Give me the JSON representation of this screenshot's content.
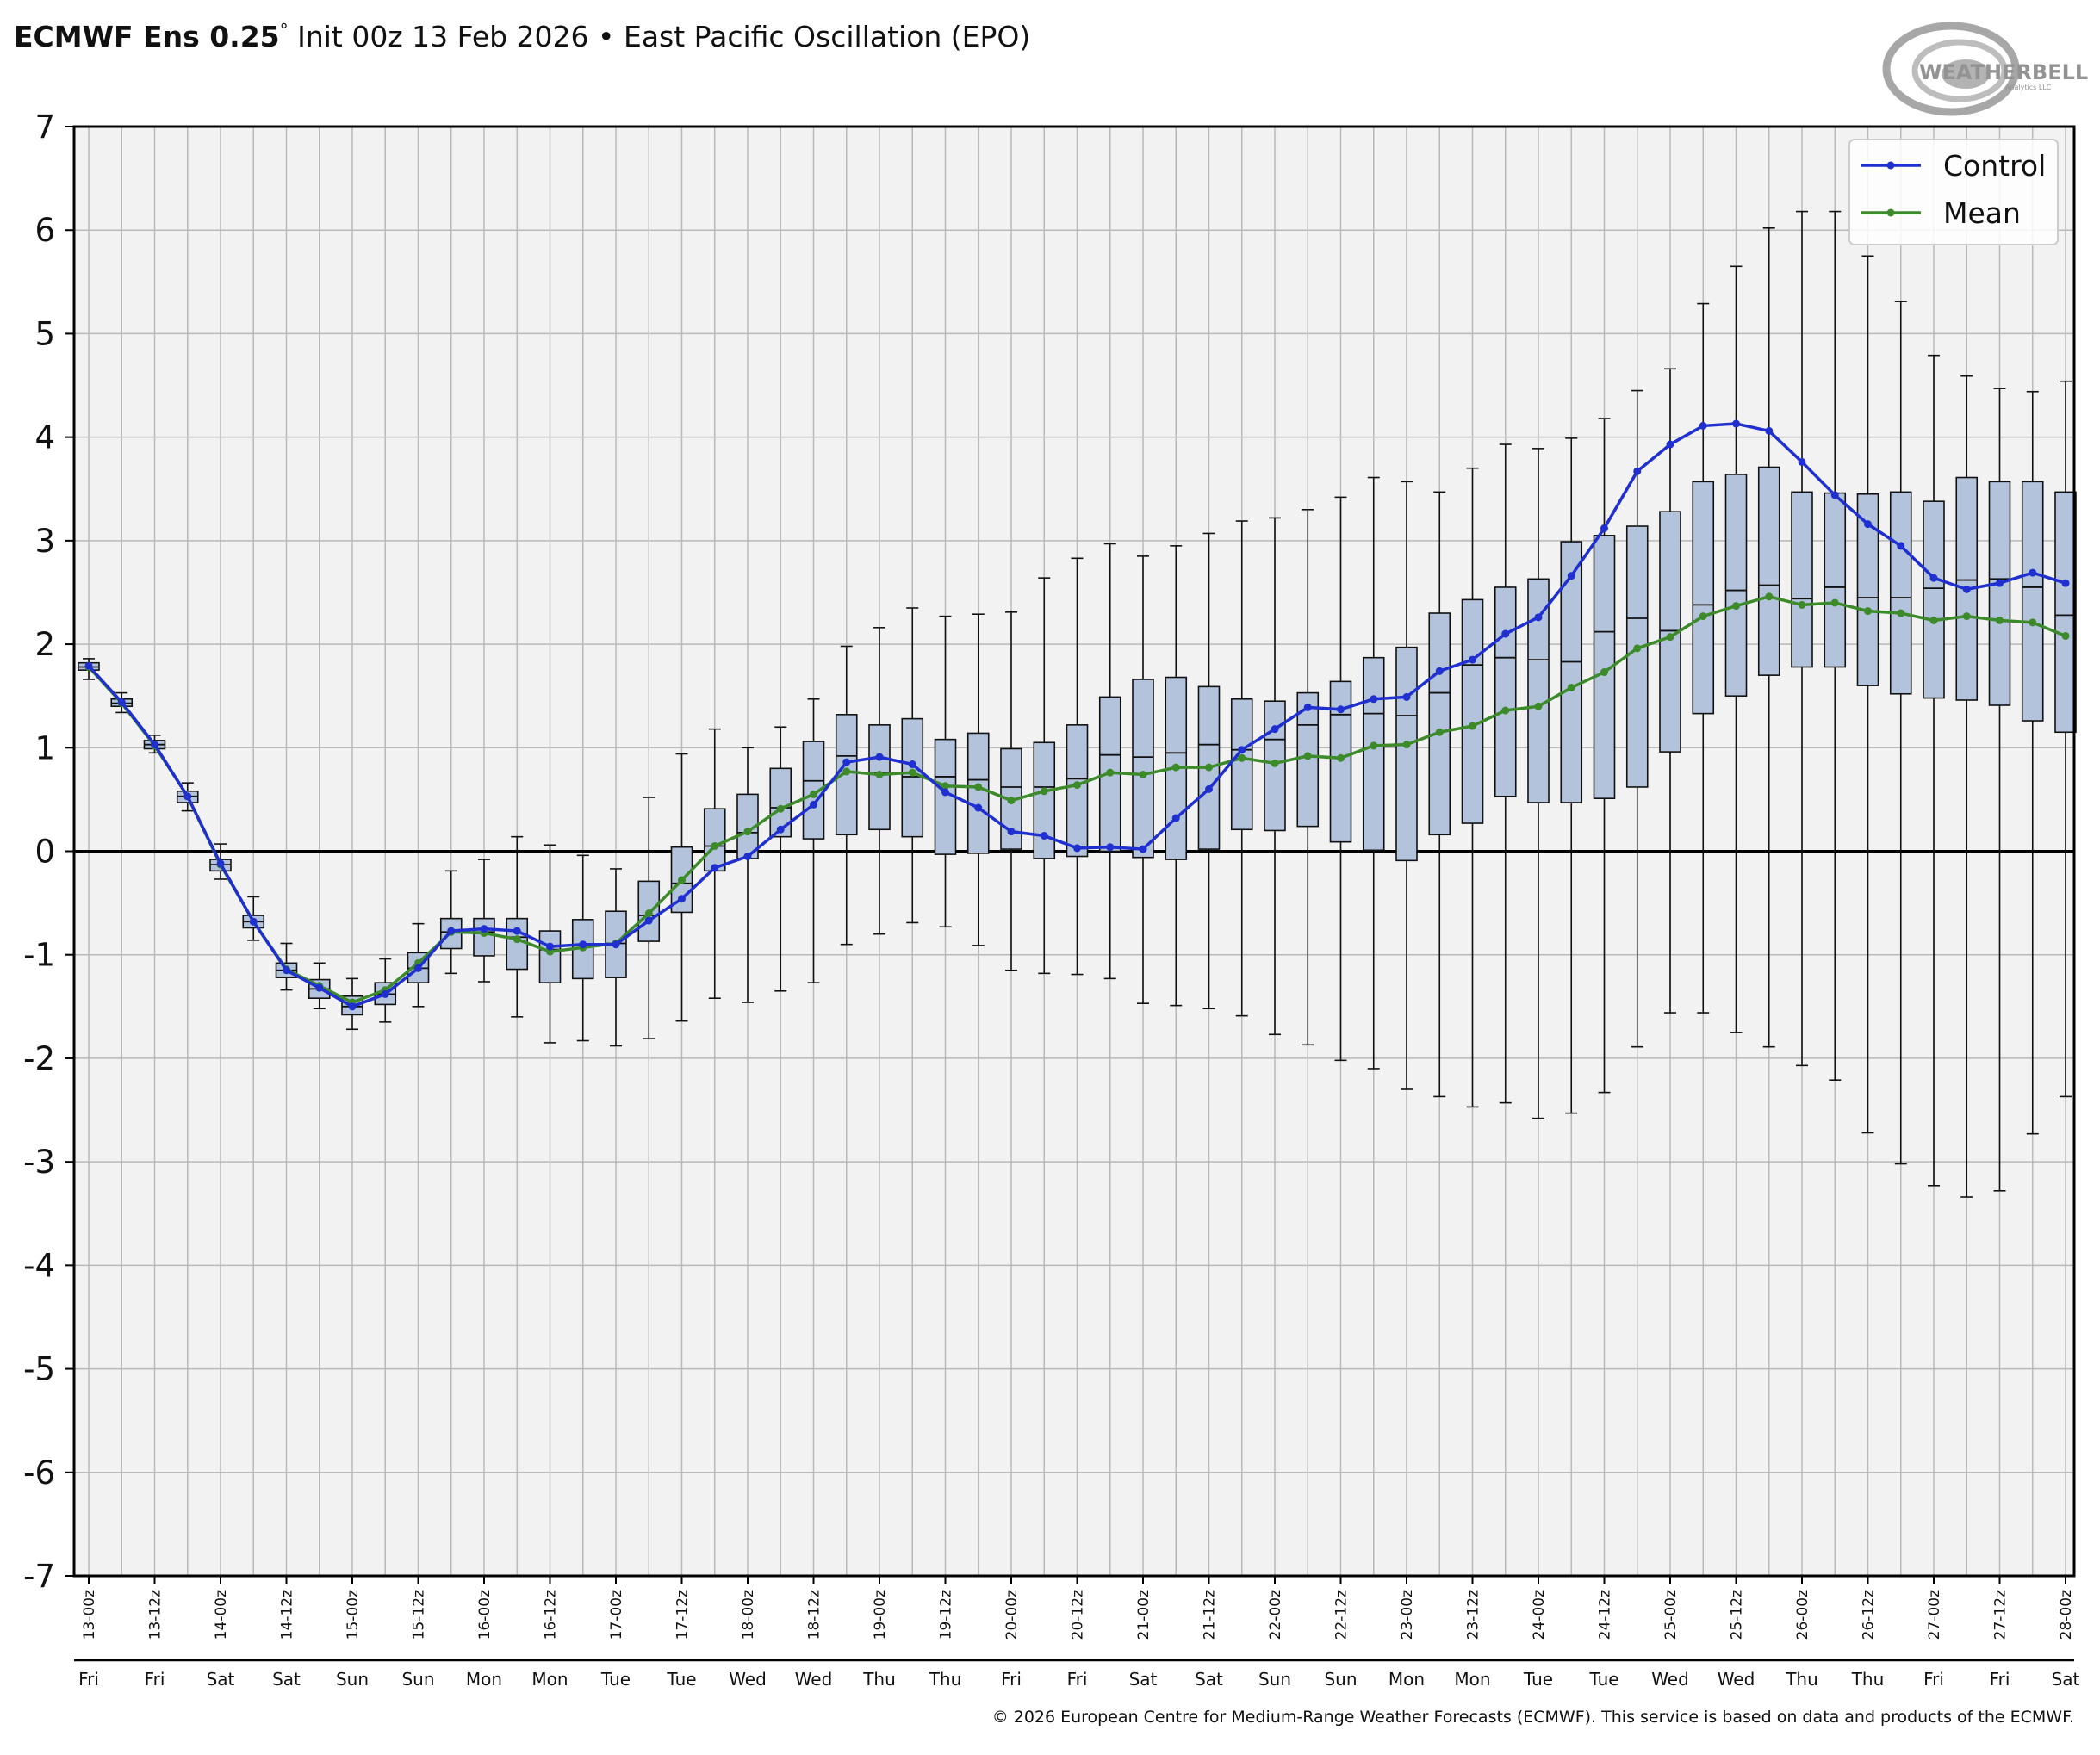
{
  "header": {
    "title_bold": "ECMWF Ens 0.25",
    "title_degree": "°",
    "title_rest": " Init 00z 13 Feb 2026 • East Pacific Oscillation (EPO)"
  },
  "logo": {
    "text_main": "WEATHERBELL",
    "text_sub": "Analytics LLC"
  },
  "footer": {
    "copyright": "© 2026 European Centre for Medium-Range Weather Forecasts (ECMWF). This service is based on data and products of the ECMWF."
  },
  "colors": {
    "control": "#1f2fd0",
    "mean": "#3d8a2a",
    "box_fill": "#b3c3dc",
    "plot_bg": "#f2f2f2",
    "grid": "#b9b9b9"
  },
  "chart_data": {
    "type": "box",
    "title": "ECMWF Ens 0.25° Init 00z 13 Feb 2026 • East Pacific Oscillation (EPO)",
    "ylim": [
      -7,
      7
    ],
    "yticks": [
      "7",
      "6",
      "5",
      "4",
      "3",
      "2",
      "1",
      "0",
      "-1",
      "-2",
      "-3",
      "-4",
      "-5",
      "-6",
      "-7"
    ],
    "grid": true,
    "legend": {
      "position": "top-right",
      "entries": [
        "Control",
        "Mean"
      ]
    },
    "categories": [
      "13-00z",
      "13-12z",
      "14-00z",
      "14-12z",
      "15-00z",
      "15-12z",
      "16-00z",
      "16-12z",
      "17-00z",
      "17-12z",
      "18-00z",
      "18-12z",
      "19-00z",
      "19-12z",
      "20-00z",
      "20-12z",
      "21-00z",
      "21-12z",
      "22-00z",
      "22-12z",
      "23-00z",
      "23-12z",
      "24-00z",
      "24-12z",
      "25-00z",
      "25-12z",
      "26-00z",
      "26-12z",
      "27-00z",
      "27-12z",
      "28-00z"
    ],
    "days": [
      "Fri",
      "Fri",
      "Sat",
      "Sat",
      "Sun",
      "Sun",
      "Mon",
      "Mon",
      "Tue",
      "Tue",
      "Wed",
      "Wed",
      "Thu",
      "Thu",
      "Fri",
      "Fri",
      "Sat",
      "Sat",
      "Sun",
      "Sun",
      "Mon",
      "Mon",
      "Tue",
      "Tue",
      "Wed",
      "Wed",
      "Thu",
      "Thu",
      "Fri",
      "Fri",
      "Sat"
    ],
    "series": [
      {
        "name": "Control",
        "values": [
          1.79,
          1.44,
          1.03,
          0.53,
          -0.12,
          -0.68,
          -1.15,
          -1.32,
          -1.5,
          -1.38,
          -1.13,
          -0.77,
          -0.75,
          -0.77,
          -0.92,
          -0.9,
          -0.9,
          -0.67,
          -0.46,
          -0.16,
          -0.05,
          0.21,
          0.45,
          0.86,
          0.91,
          0.84,
          0.57,
          0.42,
          0.19,
          0.15,
          0.03,
          0.04,
          0.02,
          0.32,
          0.6,
          0.98,
          1.18,
          1.39,
          1.37,
          1.47,
          1.49,
          1.74,
          1.85,
          2.1,
          2.26,
          2.66,
          3.12,
          3.67,
          3.93,
          4.11,
          4.13,
          4.06,
          3.76,
          3.44,
          3.16,
          2.95,
          2.64,
          2.53,
          2.59,
          2.69,
          2.59
        ]
      },
      {
        "name": "Mean",
        "values": [
          1.78,
          1.43,
          1.02,
          0.53,
          -0.13,
          -0.68,
          -1.14,
          -1.3,
          -1.46,
          -1.34,
          -1.08,
          -0.78,
          -0.79,
          -0.85,
          -0.97,
          -0.93,
          -0.89,
          -0.6,
          -0.28,
          0.05,
          0.19,
          0.41,
          0.55,
          0.77,
          0.74,
          0.76,
          0.63,
          0.62,
          0.49,
          0.58,
          0.64,
          0.76,
          0.74,
          0.81,
          0.81,
          0.9,
          0.85,
          0.92,
          0.9,
          1.02,
          1.03,
          1.15,
          1.21,
          1.36,
          1.4,
          1.58,
          1.73,
          1.96,
          2.07,
          2.27,
          2.37,
          2.46,
          2.38,
          2.4,
          2.32,
          2.3,
          2.23,
          2.27,
          2.23,
          2.21,
          2.08
        ]
      }
    ],
    "boxes": [
      {
        "q1": 1.75,
        "med": 1.78,
        "q3": 1.82,
        "lo": 1.66,
        "hi": 1.86
      },
      {
        "q1": 1.4,
        "med": 1.43,
        "q3": 1.47,
        "lo": 1.34,
        "hi": 1.53
      },
      {
        "q1": 0.99,
        "med": 1.03,
        "q3": 1.07,
        "lo": 0.95,
        "hi": 1.12
      },
      {
        "q1": 0.47,
        "med": 0.53,
        "q3": 0.58,
        "lo": 0.39,
        "hi": 0.66
      },
      {
        "q1": -0.19,
        "med": -0.13,
        "q3": -0.08,
        "lo": -0.27,
        "hi": 0.07
      },
      {
        "q1": -0.74,
        "med": -0.68,
        "q3": -0.62,
        "lo": -0.86,
        "hi": -0.44
      },
      {
        "q1": -1.22,
        "med": -1.15,
        "q3": -1.08,
        "lo": -1.34,
        "hi": -0.89
      },
      {
        "q1": -1.42,
        "med": -1.33,
        "q3": -1.24,
        "lo": -1.52,
        "hi": -1.08
      },
      {
        "q1": -1.58,
        "med": -1.5,
        "q3": -1.4,
        "lo": -1.72,
        "hi": -1.23
      },
      {
        "q1": -1.48,
        "med": -1.38,
        "q3": -1.27,
        "lo": -1.65,
        "hi": -1.04
      },
      {
        "q1": -1.27,
        "med": -1.13,
        "q3": -0.98,
        "lo": -1.5,
        "hi": -0.7
      },
      {
        "q1": -0.94,
        "med": -0.78,
        "q3": -0.65,
        "lo": -1.18,
        "hi": -0.19
      },
      {
        "q1": -1.01,
        "med": -0.78,
        "q3": -0.65,
        "lo": -1.26,
        "hi": -0.08
      },
      {
        "q1": -1.14,
        "med": -0.83,
        "q3": -0.65,
        "lo": -1.6,
        "hi": 0.14
      },
      {
        "q1": -1.27,
        "med": -0.95,
        "q3": -0.77,
        "lo": -1.85,
        "hi": 0.06
      },
      {
        "q1": -1.23,
        "med": -0.91,
        "q3": -0.66,
        "lo": -1.83,
        "hi": -0.04
      },
      {
        "q1": -1.22,
        "med": -0.89,
        "q3": -0.58,
        "lo": -1.88,
        "hi": -0.17
      },
      {
        "q1": -0.87,
        "med": -0.62,
        "q3": -0.29,
        "lo": -1.81,
        "hi": 0.52
      },
      {
        "q1": -0.59,
        "med": -0.31,
        "q3": 0.04,
        "lo": -1.64,
        "hi": 0.94
      },
      {
        "q1": -0.19,
        "med": 0.05,
        "q3": 0.41,
        "lo": -1.42,
        "hi": 1.18
      },
      {
        "q1": -0.07,
        "med": 0.18,
        "q3": 0.55,
        "lo": -1.46,
        "hi": 1.0
      },
      {
        "q1": 0.14,
        "med": 0.42,
        "q3": 0.8,
        "lo": -1.35,
        "hi": 1.2
      },
      {
        "q1": 0.12,
        "med": 0.68,
        "q3": 1.06,
        "lo": -1.27,
        "hi": 1.47
      },
      {
        "q1": 0.16,
        "med": 0.92,
        "q3": 1.32,
        "lo": -0.9,
        "hi": 1.98
      },
      {
        "q1": 0.21,
        "med": 0.76,
        "q3": 1.22,
        "lo": -0.8,
        "hi": 2.16
      },
      {
        "q1": 0.14,
        "med": 0.72,
        "q3": 1.28,
        "lo": -0.69,
        "hi": 2.35
      },
      {
        "q1": -0.03,
        "med": 0.72,
        "q3": 1.08,
        "lo": -0.73,
        "hi": 2.27
      },
      {
        "q1": -0.02,
        "med": 0.69,
        "q3": 1.14,
        "lo": -0.91,
        "hi": 2.29
      },
      {
        "q1": 0.02,
        "med": 0.62,
        "q3": 0.99,
        "lo": -1.15,
        "hi": 2.31
      },
      {
        "q1": -0.07,
        "med": 0.62,
        "q3": 1.05,
        "lo": -1.18,
        "hi": 2.64
      },
      {
        "q1": -0.05,
        "med": 0.7,
        "q3": 1.22,
        "lo": -1.19,
        "hi": 2.83
      },
      {
        "q1": 0.0,
        "med": 0.93,
        "q3": 1.49,
        "lo": -1.23,
        "hi": 2.97
      },
      {
        "q1": -0.06,
        "med": 0.91,
        "q3": 1.66,
        "lo": -1.47,
        "hi": 2.85
      },
      {
        "q1": -0.08,
        "med": 0.95,
        "q3": 1.68,
        "lo": -1.49,
        "hi": 2.95
      },
      {
        "q1": 0.02,
        "med": 1.03,
        "q3": 1.59,
        "lo": -1.52,
        "hi": 3.07
      },
      {
        "q1": 0.21,
        "med": 0.98,
        "q3": 1.47,
        "lo": -1.59,
        "hi": 3.19
      },
      {
        "q1": 0.2,
        "med": 1.08,
        "q3": 1.45,
        "lo": -1.77,
        "hi": 3.22
      },
      {
        "q1": 0.24,
        "med": 1.22,
        "q3": 1.53,
        "lo": -1.87,
        "hi": 3.3
      },
      {
        "q1": 0.09,
        "med": 1.32,
        "q3": 1.64,
        "lo": -2.02,
        "hi": 3.42
      },
      {
        "q1": 0.01,
        "med": 1.33,
        "q3": 1.87,
        "lo": -2.1,
        "hi": 3.61
      },
      {
        "q1": -0.09,
        "med": 1.31,
        "q3": 1.97,
        "lo": -2.3,
        "hi": 3.57
      },
      {
        "q1": 0.16,
        "med": 1.53,
        "q3": 2.3,
        "lo": -2.37,
        "hi": 3.47
      },
      {
        "q1": 0.27,
        "med": 1.8,
        "q3": 2.43,
        "lo": -2.47,
        "hi": 3.7
      },
      {
        "q1": 0.53,
        "med": 1.87,
        "q3": 2.55,
        "lo": -2.43,
        "hi": 3.93
      },
      {
        "q1": 0.47,
        "med": 1.85,
        "q3": 2.63,
        "lo": -2.58,
        "hi": 3.89
      },
      {
        "q1": 0.47,
        "med": 1.83,
        "q3": 2.99,
        "lo": -2.53,
        "hi": 3.99
      },
      {
        "q1": 0.51,
        "med": 2.12,
        "q3": 3.05,
        "lo": -2.33,
        "hi": 4.18
      },
      {
        "q1": 0.62,
        "med": 2.25,
        "q3": 3.14,
        "lo": -1.89,
        "hi": 4.45
      },
      {
        "q1": 0.96,
        "med": 2.13,
        "q3": 3.28,
        "lo": -1.56,
        "hi": 4.66
      },
      {
        "q1": 1.33,
        "med": 2.38,
        "q3": 3.57,
        "lo": -1.56,
        "hi": 5.29
      },
      {
        "q1": 1.5,
        "med": 2.52,
        "q3": 3.64,
        "lo": -1.75,
        "hi": 5.65
      },
      {
        "q1": 1.7,
        "med": 2.57,
        "q3": 3.71,
        "lo": -1.89,
        "hi": 6.02
      },
      {
        "q1": 1.78,
        "med": 2.44,
        "q3": 3.47,
        "lo": -2.07,
        "hi": 6.18
      },
      {
        "q1": 1.78,
        "med": 2.55,
        "q3": 3.46,
        "lo": -2.21,
        "hi": 6.18
      },
      {
        "q1": 1.6,
        "med": 2.45,
        "q3": 3.45,
        "lo": -2.72,
        "hi": 5.75
      },
      {
        "q1": 1.52,
        "med": 2.45,
        "q3": 3.47,
        "lo": -3.02,
        "hi": 5.31
      },
      {
        "q1": 1.48,
        "med": 2.54,
        "q3": 3.38,
        "lo": -3.23,
        "hi": 4.79
      },
      {
        "q1": 1.46,
        "med": 2.62,
        "q3": 3.61,
        "lo": -3.34,
        "hi": 4.59
      },
      {
        "q1": 1.41,
        "med": 2.63,
        "q3": 3.57,
        "lo": -3.28,
        "hi": 4.47
      },
      {
        "q1": 1.26,
        "med": 2.55,
        "q3": 3.57,
        "lo": -2.73,
        "hi": 4.44
      },
      {
        "q1": 1.15,
        "med": 2.28,
        "q3": 3.47,
        "lo": -2.37,
        "hi": 4.54
      }
    ]
  }
}
